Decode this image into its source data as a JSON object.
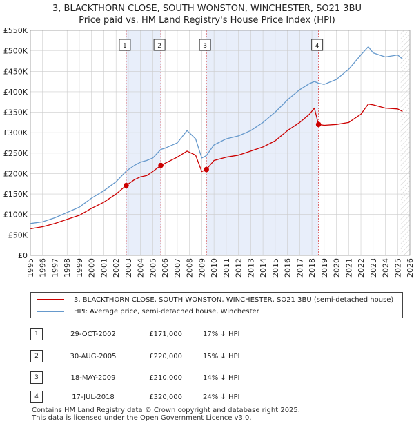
{
  "title_line1": "3, BLACKTHORN CLOSE, SOUTH WONSTON, WINCHESTER, SO21 3BU",
  "title_line2": "Price paid vs. HM Land Registry's House Price Index (HPI)",
  "legend": {
    "property_label": "3, BLACKTHORN CLOSE, SOUTH WONSTON, WINCHESTER, SO21 3BU (semi-detached house)",
    "hpi_label": "HPI: Average price, semi-detached house, Winchester"
  },
  "colors": {
    "property": "#cc0000",
    "hpi": "#6699cc",
    "shade": "#e8eefa",
    "grid": "#cccccc",
    "vline": "#dd5555"
  },
  "transactions": [
    {
      "num": "1",
      "date": "29-OCT-2002",
      "price": "£171,000",
      "hpi_diff": "17% ↓ HPI"
    },
    {
      "num": "2",
      "date": "30-AUG-2005",
      "price": "£220,000",
      "hpi_diff": "15% ↓ HPI"
    },
    {
      "num": "3",
      "date": "18-MAY-2009",
      "price": "£210,000",
      "hpi_diff": "14% ↓ HPI"
    },
    {
      "num": "4",
      "date": "17-JUL-2018",
      "price": "£320,000",
      "hpi_diff": "24% ↓ HPI"
    }
  ],
  "footer_line1": "Contains HM Land Registry data © Crown copyright and database right 2025.",
  "footer_line2": "This data is licensed under the Open Government Licence v3.0.",
  "chart_data": {
    "type": "line",
    "title": "3, BLACKTHORN CLOSE, SOUTH WONSTON, WINCHESTER, SO21 3BU",
    "subtitle": "Price paid vs. HM Land Registry's House Price Index (HPI)",
    "xlim": [
      1995,
      2026
    ],
    "ylim": [
      0,
      550000
    ],
    "y_ticks": [
      0,
      50000,
      100000,
      150000,
      200000,
      250000,
      300000,
      350000,
      400000,
      450000,
      500000,
      550000
    ],
    "y_tick_labels": [
      "£0",
      "£50K",
      "£100K",
      "£150K",
      "£200K",
      "£250K",
      "£300K",
      "£350K",
      "£400K",
      "£450K",
      "£500K",
      "£550K"
    ],
    "x_ticks": [
      1995,
      1996,
      1997,
      1998,
      1999,
      2000,
      2001,
      2002,
      2003,
      2004,
      2005,
      2006,
      2007,
      2008,
      2009,
      2010,
      2011,
      2012,
      2013,
      2014,
      2015,
      2016,
      2017,
      2018,
      2019,
      2020,
      2021,
      2022,
      2023,
      2024,
      2025,
      2026
    ],
    "grid": true,
    "shaded_periods": [
      [
        2002.83,
        2005.66
      ],
      [
        2009.38,
        2018.54
      ]
    ],
    "projection_start": 2025.25,
    "sales": [
      {
        "label": "1",
        "x": 2002.83,
        "y": 171000
      },
      {
        "label": "2",
        "x": 2005.66,
        "y": 220000
      },
      {
        "label": "3",
        "x": 2009.38,
        "y": 210000
      },
      {
        "label": "4",
        "x": 2018.54,
        "y": 320000
      }
    ],
    "series": [
      {
        "name": "3, BLACKTHORN CLOSE, SOUTH WONSTON, WINCHESTER, SO21 3BU (semi-detached house)",
        "x": [
          1995,
          1996,
          1997,
          1998,
          1999,
          2000,
          2001,
          2002,
          2002.83,
          2003.5,
          2004,
          2004.5,
          2005,
          2005.66,
          2006,
          2007,
          2007.8,
          2008.5,
          2009,
          2009.38,
          2010,
          2011,
          2012,
          2013,
          2014,
          2015,
          2016,
          2017,
          2017.8,
          2018.2,
          2018.54,
          2019,
          2020,
          2021,
          2022,
          2022.6,
          2023,
          2024,
          2025,
          2025.4
        ],
        "y": [
          65000,
          70000,
          78000,
          88000,
          98000,
          115000,
          130000,
          150000,
          171000,
          185000,
          192000,
          195000,
          205000,
          220000,
          225000,
          240000,
          255000,
          245000,
          205000,
          210000,
          232000,
          240000,
          245000,
          255000,
          265000,
          280000,
          305000,
          325000,
          345000,
          360000,
          320000,
          318000,
          320000,
          325000,
          345000,
          370000,
          368000,
          360000,
          358000,
          352000
        ]
      },
      {
        "name": "HPI: Average price, semi-detached house, Winchester",
        "x": [
          1995,
          1996,
          1997,
          1998,
          1999,
          2000,
          2001,
          2002,
          2002.83,
          2003.5,
          2004,
          2004.5,
          2005,
          2005.66,
          2006,
          2007,
          2007.8,
          2008.5,
          2009,
          2009.38,
          2010,
          2011,
          2012,
          2013,
          2014,
          2015,
          2016,
          2017,
          2017.8,
          2018.2,
          2018.54,
          2019,
          2020,
          2021,
          2022,
          2022.6,
          2023,
          2024,
          2025,
          2025.4
        ],
        "y": [
          78000,
          82000,
          92000,
          105000,
          118000,
          140000,
          158000,
          180000,
          206000,
          220000,
          228000,
          232000,
          238000,
          259000,
          262000,
          275000,
          305000,
          285000,
          238000,
          244000,
          270000,
          285000,
          292000,
          305000,
          325000,
          350000,
          380000,
          405000,
          420000,
          425000,
          421000,
          418000,
          430000,
          455000,
          490000,
          510000,
          495000,
          485000,
          490000,
          480000
        ]
      }
    ]
  }
}
